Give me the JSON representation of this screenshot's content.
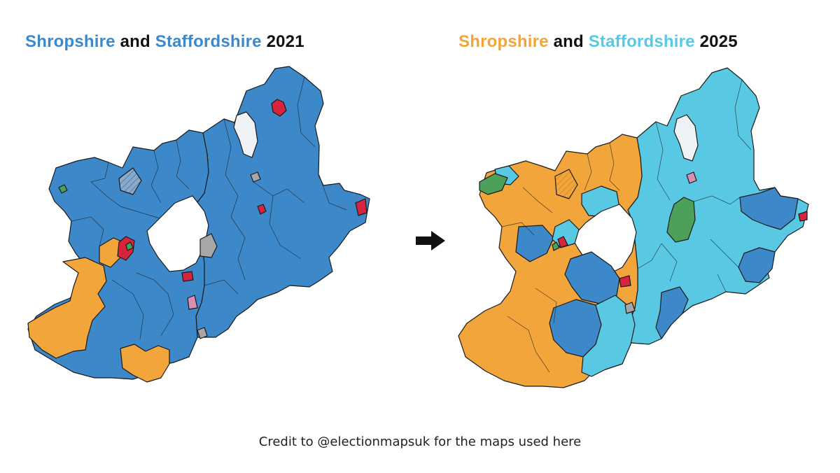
{
  "left": {
    "title": {
      "part1": "Shropshire",
      "and": "and",
      "part2": "Staffordshire",
      "year": "2021"
    },
    "colors": {
      "part1": "#3d88c9",
      "part2": "#3d88c9"
    }
  },
  "right": {
    "title": {
      "part1": "Shropshire",
      "and": "and",
      "part2": "Staffordshire",
      "year": "2025"
    },
    "colors": {
      "part1": "#f2a53a",
      "part2": "#59c9e3"
    }
  },
  "party_colors": {
    "conservative": "#3d88c9",
    "reform": "#59c9e3",
    "lib_dem": "#f2a53a",
    "labour": "#d8233d",
    "green": "#4ca05a",
    "independent": "#a7a7a7",
    "no_election": "#eef2f4",
    "other": "#d98fb3"
  },
  "arrow_icon": "right-arrow-icon",
  "credit": "Credit to @electionmapsuk for the maps used here"
}
